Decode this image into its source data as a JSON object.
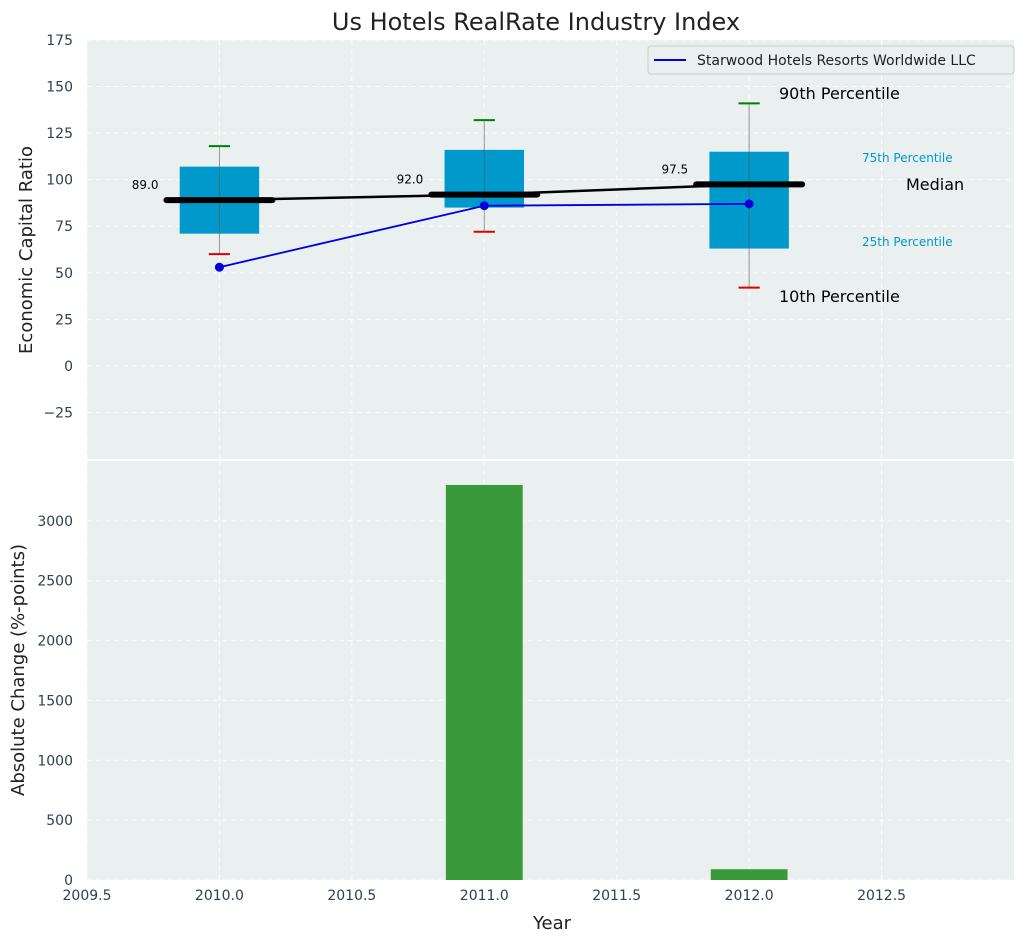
{
  "chart_data": {
    "title": "Us Hotels RealRate Industry Index",
    "xlabel": "Year",
    "x_ticks": [
      "2009.5",
      "2010.0",
      "2010.5",
      "2011.0",
      "2011.5",
      "2012.0",
      "2012.5"
    ],
    "x_tick_values": [
      2009.5,
      2010.0,
      2010.5,
      2011.0,
      2011.5,
      2012.0,
      2012.5
    ],
    "xlim": [
      2009.5,
      2013.0
    ],
    "colors": {
      "box": "#0099cc",
      "median": "#000000",
      "series": "#0000dd",
      "p90": "#008000",
      "p10": "#dd0000",
      "bar": "#3a9a3a",
      "plot_bg": "#eaeff0",
      "pct_small": "#0099cc"
    },
    "top": {
      "type": "box",
      "ylabel": "Economic Capital Ratio",
      "ylim": [
        -50,
        175
      ],
      "y_ticks": [
        "175",
        "150",
        "125",
        "100",
        "75",
        "50",
        "25",
        "0",
        "−25"
      ],
      "y_tick_values": [
        175,
        150,
        125,
        100,
        75,
        50,
        25,
        0,
        -25
      ],
      "grid": true,
      "boxes": [
        {
          "x": 2010,
          "p10": 60,
          "p25": 71,
          "median": 89.0,
          "p75": 107,
          "p90": 118,
          "median_label": "89.0"
        },
        {
          "x": 2011,
          "p10": 72,
          "p25": 85,
          "median": 92.0,
          "p75": 116,
          "p90": 132,
          "median_label": "92.0"
        },
        {
          "x": 2012,
          "p10": 42,
          "p25": 63,
          "median": 97.5,
          "p75": 115,
          "p90": 141,
          "median_label": "97.5"
        }
      ],
      "series": {
        "name": "Starwood Hotels Resorts Worldwide LLC",
        "x": [
          2010,
          2011,
          2012
        ],
        "y": [
          53,
          86,
          87
        ]
      },
      "legend": {
        "label": "Starwood Hotels Resorts Worldwide LLC",
        "placement": "top-right"
      },
      "annotations": {
        "p90": "90th Percentile",
        "p75": "75th Percentile",
        "median": "Median",
        "p25": "25th Percentile",
        "p10": "10th Percentile"
      }
    },
    "bottom": {
      "type": "bar",
      "ylabel": "Absolute Change (%-points)",
      "ylim": [
        0,
        3500
      ],
      "y_ticks": [
        "3000",
        "2500",
        "2000",
        "1500",
        "1000",
        "500",
        "0"
      ],
      "y_tick_values": [
        3000,
        2500,
        2000,
        1500,
        1000,
        500,
        0
      ],
      "grid": true,
      "bars": [
        {
          "x": 2011,
          "value": 3300
        },
        {
          "x": 2012,
          "value": 90
        }
      ]
    }
  }
}
